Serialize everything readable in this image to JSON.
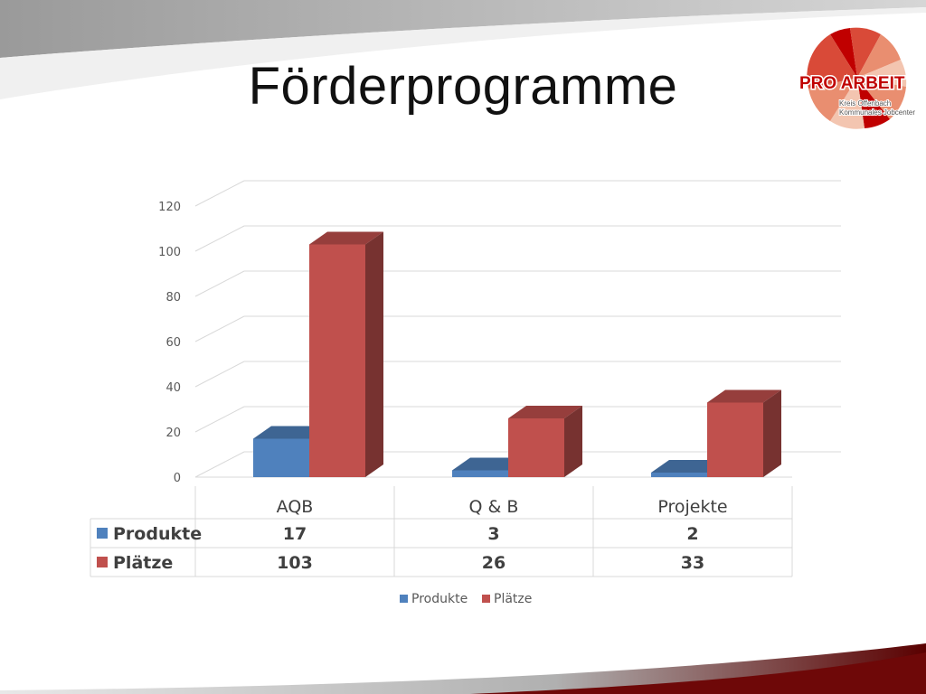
{
  "slide": {
    "title": "Förderprogramme"
  },
  "logo": {
    "name": "PRO ARBEIT",
    "line1": "Kreis Offenbach",
    "line2": "Kommunales Jobcenter"
  },
  "colors": {
    "produkte": "#4f81bd",
    "plaetze": "#c0504d",
    "accent_dark": "#7f0d0d"
  },
  "chart_data": {
    "type": "bar",
    "categories": [
      "AQB",
      "Q & B",
      "Projekte"
    ],
    "series": [
      {
        "name": "Produkte",
        "values": [
          17,
          3,
          2
        ]
      },
      {
        "name": "Plätze",
        "values": [
          103,
          26,
          33
        ]
      }
    ],
    "ylim": [
      0,
      120
    ],
    "yticks": [
      0,
      20,
      40,
      60,
      80,
      100,
      120
    ],
    "grid": true,
    "legend": "bottom",
    "data_table": true
  }
}
